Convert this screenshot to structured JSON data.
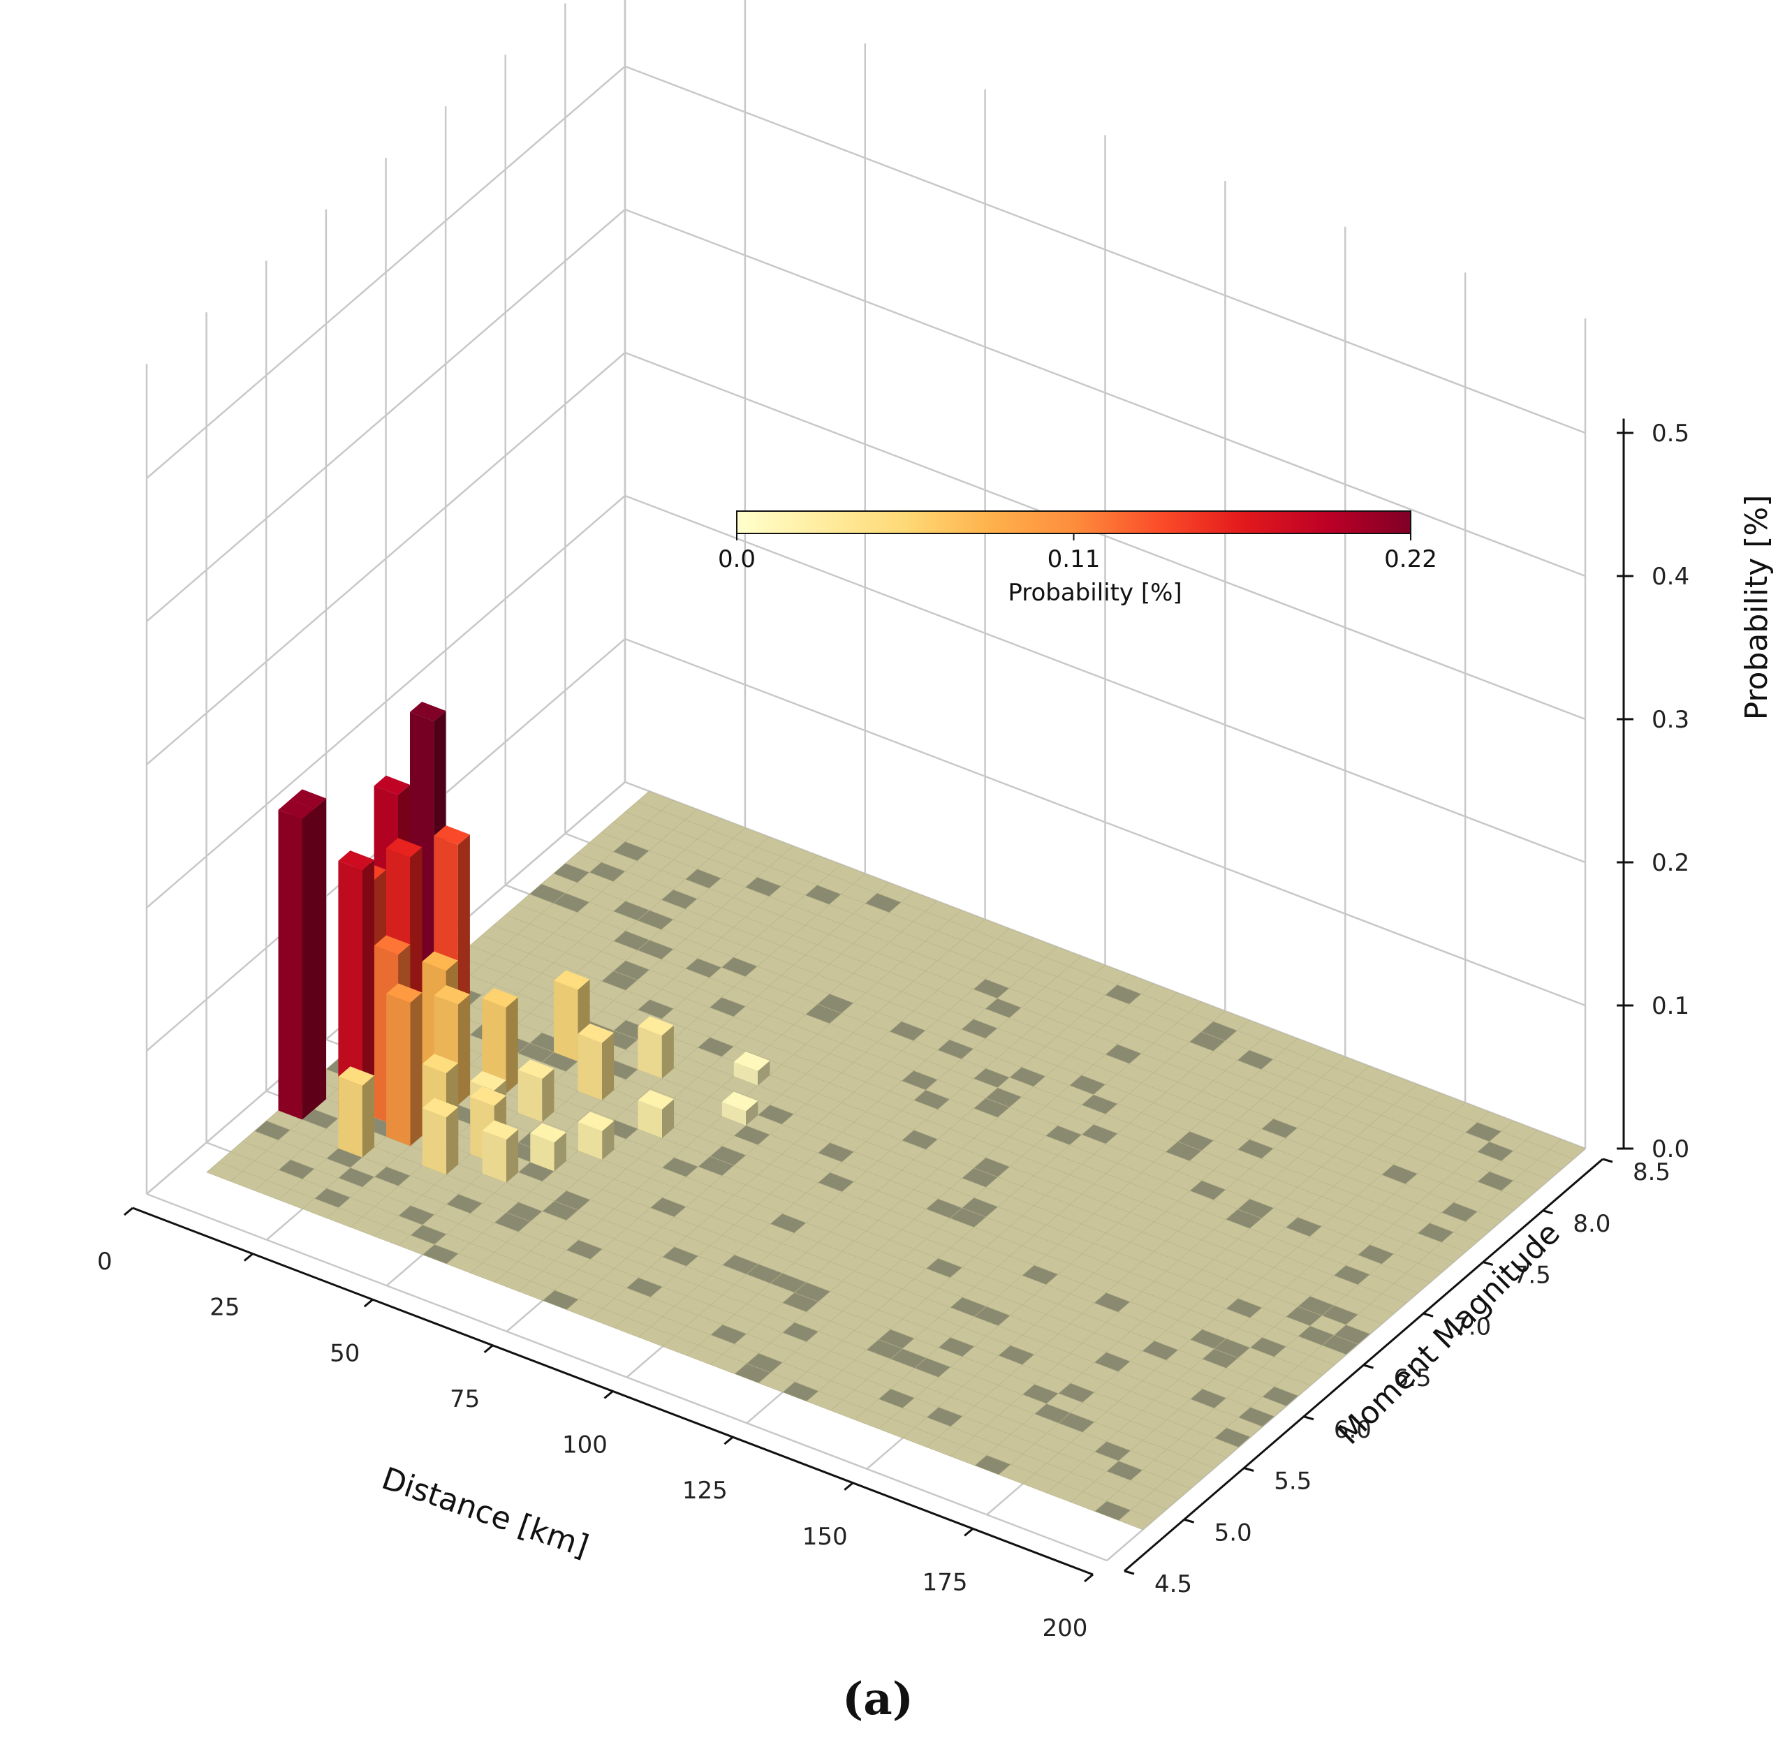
{
  "caption": "(a)",
  "chart_data": {
    "type": "bar3d",
    "xlabel": "Distance [km]",
    "ylabel": "Moment Magnitude",
    "zlabel": "Probability [%]",
    "x_ticks": [
      "0",
      "25",
      "50",
      "75",
      "100",
      "125",
      "150",
      "175",
      "200"
    ],
    "y_ticks": [
      "4.5",
      "5.0",
      "5.5",
      "6.0",
      "6.5",
      "7.0",
      "7.5",
      "8.0",
      "8.5"
    ],
    "z_ticks": [
      "0.0",
      "0.1",
      "0.2",
      "0.3",
      "0.4",
      "0.5"
    ],
    "xlim": [
      0,
      200
    ],
    "ylim": [
      4.5,
      8.5
    ],
    "zlim": [
      0,
      0.5
    ],
    "grid": true,
    "bin_width_km": 5,
    "bin_width_mag": 0.1,
    "colorbar": {
      "label": "Probability [%]",
      "ticks": [
        "0.0",
        "0.11",
        "0.22"
      ],
      "range": [
        0.0,
        0.22
      ],
      "colormap": [
        "#ffffcc",
        "#ffeda0",
        "#fed976",
        "#feb24c",
        "#fd8d3c",
        "#fc4e2a",
        "#e31a1c",
        "#bd0026",
        "#800026"
      ],
      "placement": "inside-top-center"
    },
    "floor_color": "#c9c49a",
    "floor_dark_color": "#8a8a70",
    "bars": [
      {
        "x": 5,
        "y": 5.4,
        "value": 0.21
      },
      {
        "x": 5,
        "y": 5.5,
        "value": 0.21
      },
      {
        "x": 10,
        "y": 5.8,
        "value": 0.145
      },
      {
        "x": 10,
        "y": 6.3,
        "value": 0.22
      },
      {
        "x": 10,
        "y": 6.0,
        "value": 0.19
      },
      {
        "x": 15,
        "y": 5.5,
        "value": 0.18
      },
      {
        "x": 15,
        "y": 5.9,
        "value": 0.16
      },
      {
        "x": 15,
        "y": 6.3,
        "value": 0.14
      },
      {
        "x": 20,
        "y": 5.3,
        "value": 0.05
      },
      {
        "x": 20,
        "y": 5.6,
        "value": 0.12
      },
      {
        "x": 20,
        "y": 6.0,
        "value": 0.08
      },
      {
        "x": 25,
        "y": 5.5,
        "value": 0.1
      },
      {
        "x": 25,
        "y": 5.9,
        "value": 0.07
      },
      {
        "x": 30,
        "y": 5.6,
        "value": 0.05
      },
      {
        "x": 30,
        "y": 6.1,
        "value": 0.06
      },
      {
        "x": 35,
        "y": 5.4,
        "value": 0.04
      },
      {
        "x": 35,
        "y": 5.8,
        "value": 0.03
      },
      {
        "x": 35,
        "y": 6.5,
        "value": 0.05
      },
      {
        "x": 40,
        "y": 5.6,
        "value": 0.04
      },
      {
        "x": 40,
        "y": 6.0,
        "value": 0.03
      },
      {
        "x": 45,
        "y": 5.5,
        "value": 0.03
      },
      {
        "x": 45,
        "y": 6.3,
        "value": 0.04
      },
      {
        "x": 50,
        "y": 5.7,
        "value": 0.02
      },
      {
        "x": 50,
        "y": 6.6,
        "value": 0.03
      },
      {
        "x": 55,
        "y": 5.9,
        "value": 0.02
      },
      {
        "x": 60,
        "y": 6.2,
        "value": 0.02
      },
      {
        "x": 65,
        "y": 6.8,
        "value": 0.01
      },
      {
        "x": 70,
        "y": 6.5,
        "value": 0.01
      }
    ]
  }
}
